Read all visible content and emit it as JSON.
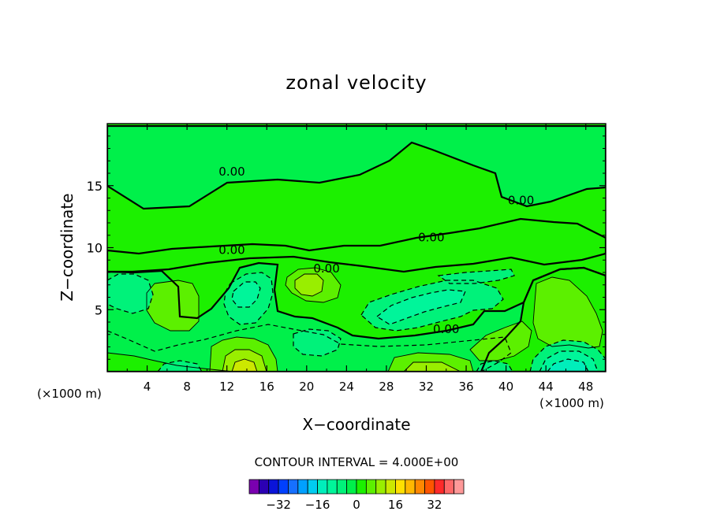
{
  "chart_data": {
    "type": "heatmap",
    "title": "zonal velocity",
    "xlabel": "X−coordinate",
    "ylabel": "Z−coordinate",
    "x_unit_left": "(×1000 m)",
    "x_unit_right": "(×1000 m)",
    "xlim": [
      0,
      50
    ],
    "ylim": [
      0,
      20
    ],
    "x_ticks": [
      4,
      8,
      12,
      16,
      20,
      24,
      28,
      32,
      36,
      40,
      44,
      48
    ],
    "y_ticks": [
      5,
      10,
      15
    ],
    "contour_interval_text": "CONTOUR INTERVAL = 4.000E+00",
    "contour_interval": 4,
    "zero_contour_label": "0.00",
    "zero_label_points": [
      [
        12.5,
        15.8
      ],
      [
        41.5,
        13.5
      ],
      [
        12.5,
        9.5
      ],
      [
        32.5,
        10.5
      ],
      [
        22.0,
        8.0
      ],
      [
        34.0,
        3.1
      ]
    ],
    "colorbar": {
      "levels": [
        -40,
        -36,
        -32,
        -28,
        -24,
        -20,
        -16,
        -12,
        -8,
        -4,
        0,
        4,
        8,
        12,
        16,
        20,
        24,
        28,
        32,
        36,
        40
      ],
      "colors": [
        "#7a00b0",
        "#2b00b3",
        "#0a14d9",
        "#0040ff",
        "#1670ff",
        "#00a0ff",
        "#00ccf0",
        "#00eebb",
        "#00f59a",
        "#00f27a",
        "#00f04a",
        "#1cf000",
        "#5cf000",
        "#99ee00",
        "#cce800",
        "#ffe000",
        "#ffb800",
        "#ff8800",
        "#ff5500",
        "#ff2a2a",
        "#ff6868",
        "#ff9999"
      ],
      "tick_labels": [
        "−32",
        "−16",
        "0",
        "16",
        "32"
      ],
      "tick_values": [
        -32,
        -16,
        0,
        16,
        32
      ]
    },
    "regions": [
      {
        "name": "background",
        "value": 2,
        "color": "#1cf000"
      },
      {
        "name": "upper-layer",
        "value": -2,
        "color": "#00f04a"
      },
      {
        "name": "band-z10",
        "value": 2,
        "color": "#1cf000"
      },
      {
        "name": "left-lower",
        "value": -2,
        "color": "#00f04a"
      },
      {
        "name": "right-lower",
        "value": 2,
        "color": "#1cf000"
      },
      {
        "name": "mid-lower",
        "value": -2,
        "color": "#00f04a"
      },
      {
        "name": "bottom-left",
        "value": 2,
        "color": "#1cf000"
      },
      {
        "name": "patch-x4-z6",
        "value": 6,
        "color": "#5cf000"
      },
      {
        "name": "cell-x2-z6",
        "value": -6,
        "color": "#00f27a"
      },
      {
        "name": "cell-x14-z6",
        "value": -6,
        "color": "#00f27a"
      },
      {
        "name": "cell-x14-z6-core",
        "value": -10,
        "color": "#00f59a"
      },
      {
        "name": "jet-x30-z5",
        "value": -6,
        "color": "#00f27a"
      },
      {
        "name": "jet-x30-z5-core",
        "value": -10,
        "color": "#00f59a"
      },
      {
        "name": "band-x36-z7",
        "value": -6,
        "color": "#00f27a"
      },
      {
        "name": "max-x20-z7",
        "value": 6,
        "color": "#5cf000"
      },
      {
        "name": "max-x20-z7-core",
        "value": 10,
        "color": "#99ee00"
      },
      {
        "name": "min-x20-z2",
        "value": -6,
        "color": "#00f27a"
      },
      {
        "name": "max-x38-z2",
        "value": 6,
        "color": "#5cf000"
      },
      {
        "name": "max-x45-z4",
        "value": 6,
        "color": "#5cf000"
      },
      {
        "name": "bottom-x14",
        "value": 6,
        "color": "#5cf000"
      },
      {
        "name": "bottom-x14-mid",
        "value": 10,
        "color": "#99ee00"
      },
      {
        "name": "bottom-x14-core",
        "value": 14,
        "color": "#cce800"
      },
      {
        "name": "bottom-x32",
        "value": 6,
        "color": "#5cf000"
      },
      {
        "name": "bottom-x32-core",
        "value": 10,
        "color": "#99ee00"
      },
      {
        "name": "bottom-x5",
        "value": -6,
        "color": "#00f27a"
      },
      {
        "name": "bottom-x39",
        "value": -6,
        "color": "#00f27a"
      },
      {
        "name": "min-x46-z1",
        "value": -6,
        "color": "#00f27a"
      },
      {
        "name": "min-x46-z1-mid",
        "value": -10,
        "color": "#00f59a"
      },
      {
        "name": "min-x46-z1-core",
        "value": -14,
        "color": "#00eebb"
      }
    ]
  }
}
